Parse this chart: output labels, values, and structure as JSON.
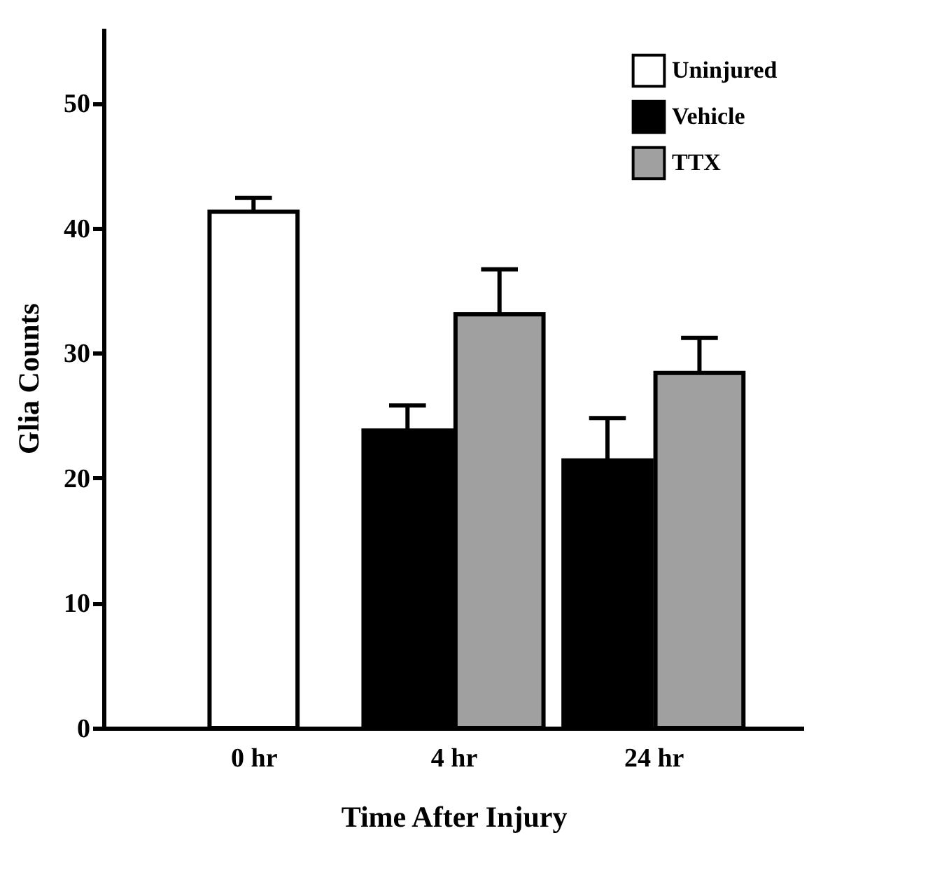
{
  "chart_data": {
    "type": "bar",
    "xlabel": "Time After Injury",
    "ylabel": "Glia Counts",
    "categories": [
      "0 hr",
      "4 hr",
      "24 hr"
    ],
    "series": [
      {
        "name": "Uninjured",
        "color": "#ffffff",
        "values": [
          41.3,
          null,
          null
        ],
        "errors": [
          [
            41.3,
            42.4
          ],
          null,
          null
        ]
      },
      {
        "name": "Vehicle",
        "color": "#000000",
        "values": [
          null,
          23.8,
          21.4
        ],
        "errors": [
          null,
          [
            23.8,
            25.8
          ],
          [
            21.4,
            24.8
          ]
        ]
      },
      {
        "name": "TTX",
        "color": "#a0a0a0",
        "values": [
          null,
          33.1,
          28.4
        ],
        "errors": [
          null,
          [
            33.1,
            36.7
          ],
          [
            28.4,
            31.2
          ]
        ]
      }
    ],
    "ylim": [
      0,
      56
    ],
    "yticks": [
      0,
      10,
      20,
      30,
      40,
      50
    ],
    "grid": false,
    "legend": "top right"
  }
}
